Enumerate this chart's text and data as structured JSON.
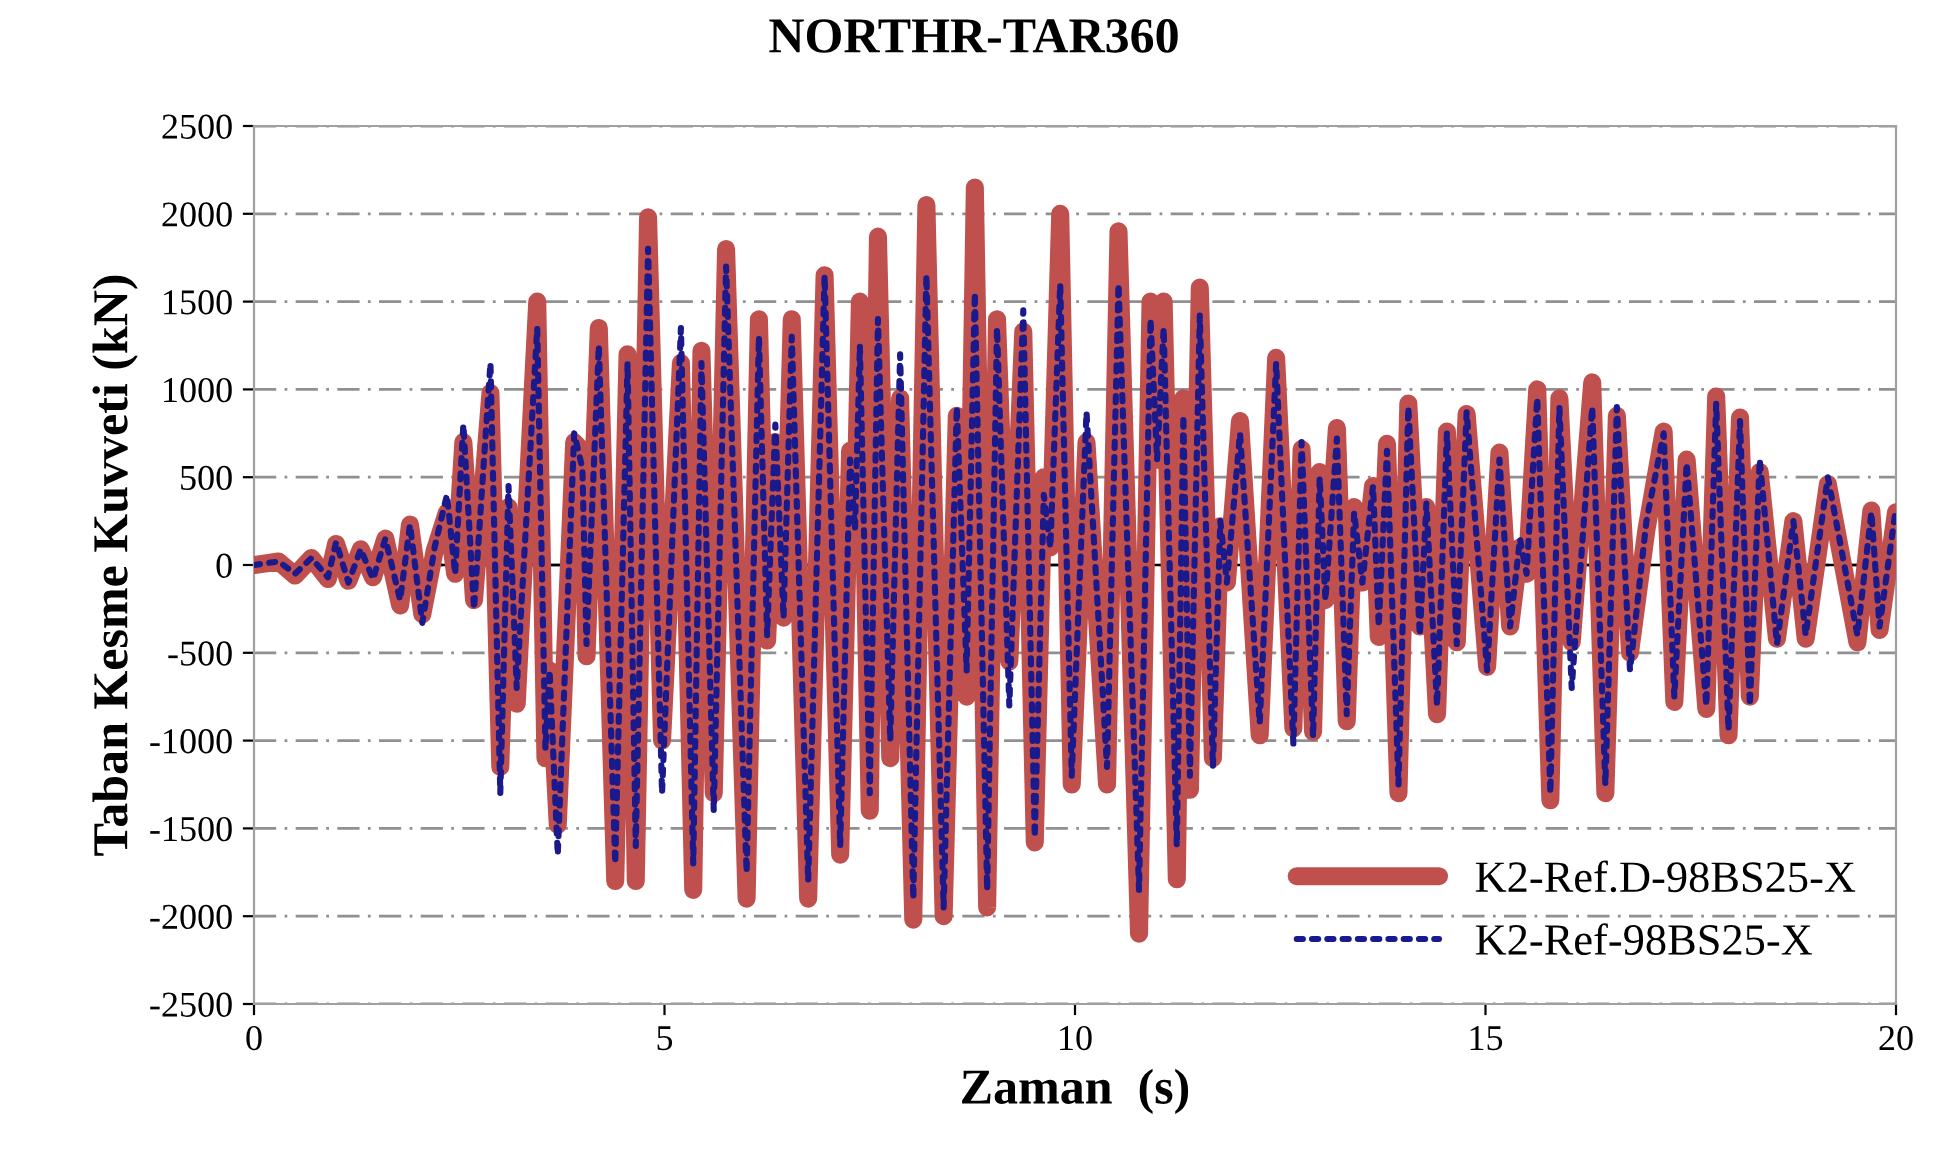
{
  "chart_data": {
    "type": "line",
    "title": "NORTHR-TAR360",
    "xlabel": "Zaman  (s)",
    "ylabel": "Taban Kesme Kuvveti (kN)",
    "x": [
      0,
      0.3,
      0.5,
      0.7,
      0.9,
      1.0,
      1.15,
      1.3,
      1.45,
      1.6,
      1.78,
      1.9,
      2.05,
      2.2,
      2.35,
      2.45,
      2.55,
      2.68,
      2.88,
      3.0,
      3.1,
      3.2,
      3.45,
      3.55,
      3.6,
      3.7,
      3.9,
      4.0,
      4.05,
      4.2,
      4.4,
      4.55,
      4.65,
      4.8,
      4.97,
      5.2,
      5.35,
      5.45,
      5.6,
      5.75,
      6.0,
      6.15,
      6.25,
      6.35,
      6.45,
      6.55,
      6.75,
      6.95,
      7.14,
      7.26,
      7.32,
      7.38,
      7.5,
      7.6,
      7.75,
      7.87,
      8.03,
      8.19,
      8.4,
      8.56,
      8.68,
      8.78,
      8.93,
      9.05,
      9.2,
      9.37,
      9.51,
      9.62,
      9.7,
      9.82,
      9.96,
      10.14,
      10.39,
      10.53,
      10.78,
      10.92,
      11.0,
      11.08,
      11.24,
      11.32,
      11.4,
      11.52,
      11.68,
      11.77,
      11.85,
      12.01,
      12.25,
      12.45,
      12.66,
      12.76,
      12.9,
      12.98,
      13.05,
      13.19,
      13.31,
      13.4,
      13.5,
      13.63,
      13.7,
      13.8,
      13.94,
      14.06,
      14.2,
      14.28,
      14.41,
      14.53,
      14.65,
      14.77,
      15.02,
      15.17,
      15.3,
      15.42,
      15.5,
      15.63,
      15.79,
      15.9,
      16.05,
      16.3,
      16.46,
      16.6,
      16.76,
      16.96,
      17.17,
      17.3,
      17.45,
      17.69,
      17.81,
      17.96,
      18.1,
      18.22,
      18.34,
      18.55,
      18.75,
      18.9,
      19.17,
      19.53,
      19.7,
      19.8,
      20
    ],
    "series": [
      {
        "name": "K2-Ref.D-98BS25-X",
        "color": "#c0504d",
        "line_style": "solid",
        "values": [
          0,
          20,
          -60,
          40,
          -80,
          120,
          -90,
          90,
          -70,
          150,
          -230,
          230,
          -280,
          80,
          300,
          -50,
          700,
          -200,
          980,
          -1150,
          330,
          -790,
          1500,
          -1100,
          -600,
          -1480,
          700,
          650,
          -520,
          1350,
          -1800,
          1200,
          -1800,
          1980,
          -1000,
          1150,
          -1850,
          1220,
          -1300,
          1800,
          -1900,
          1400,
          -430,
          700,
          -300,
          1400,
          -1900,
          1650,
          -1650,
          650,
          200,
          1500,
          -1400,
          1870,
          -1100,
          950,
          -2020,
          2050,
          -2000,
          850,
          -750,
          2150,
          -1950,
          1400,
          -550,
          1330,
          -1580,
          500,
          100,
          2000,
          -1250,
          700,
          -1250,
          1900,
          -2100,
          1500,
          600,
          1500,
          -1790,
          950,
          -1280,
          1580,
          -1100,
          220,
          -100,
          820,
          -970,
          1180,
          -930,
          660,
          -950,
          530,
          -200,
          780,
          -890,
          330,
          -100,
          450,
          -410,
          690,
          -1300,
          920,
          -350,
          330,
          -850,
          760,
          -440,
          860,
          -580,
          640,
          -350,
          100,
          -50,
          1000,
          -1340,
          950,
          -440,
          1040,
          -1300,
          850,
          -500,
          200,
          760,
          -780,
          600,
          -820,
          960,
          -970,
          840,
          -750,
          530,
          -420,
          250,
          -420,
          460,
          -440,
          310,
          -370,
          300
        ]
      },
      {
        "name": "K2-Ref-98BS25-X",
        "color": "#1a1a8c",
        "line_style": "dotted",
        "values": [
          0,
          20,
          -50,
          40,
          -70,
          130,
          -100,
          90,
          -80,
          150,
          -200,
          230,
          -330,
          100,
          400,
          -50,
          800,
          -250,
          1150,
          -1300,
          450,
          -700,
          1350,
          -1050,
          -600,
          -1650,
          750,
          550,
          -450,
          1250,
          -1700,
          1150,
          -1600,
          1800,
          -1300,
          1350,
          -1700,
          1150,
          -1400,
          1700,
          -1750,
          1300,
          -400,
          800,
          -300,
          1300,
          -1800,
          1650,
          -1600,
          600,
          200,
          1250,
          -1300,
          1400,
          -1000,
          1200,
          -1900,
          1650,
          -1950,
          900,
          -600,
          1550,
          -1850,
          1350,
          -800,
          1450,
          -1550,
          400,
          100,
          1600,
          -1200,
          870,
          -1150,
          1600,
          -1850,
          1400,
          600,
          1350,
          -1600,
          850,
          -1200,
          1420,
          -1150,
          250,
          -100,
          750,
          -900,
          1150,
          -1020,
          700,
          -980,
          500,
          -200,
          720,
          -850,
          300,
          -100,
          450,
          -350,
          650,
          -1250,
          900,
          -400,
          350,
          -800,
          750,
          -450,
          870,
          -600,
          600,
          -350,
          150,
          -50,
          950,
          -1300,
          900,
          -700,
          900,
          -1250,
          900,
          -600,
          250,
          750,
          -750,
          580,
          -800,
          920,
          -940,
          820,
          -800,
          600,
          -450,
          250,
          -400,
          500,
          -400,
          300,
          -350,
          330
        ]
      }
    ],
    "xlim": [
      0,
      20
    ],
    "xticks": [
      0,
      5,
      10,
      15,
      20
    ],
    "ylim": [
      -2500,
      2500
    ],
    "yticks": [
      -2500,
      -2000,
      -1500,
      -1000,
      -500,
      0,
      500,
      1000,
      1500,
      2000,
      2500
    ],
    "ref_lines": [
      {
        "axis": "y",
        "value": 0,
        "color": "#000000"
      }
    ],
    "grid": "y",
    "legend": "bottom right",
    "marker": "none"
  }
}
